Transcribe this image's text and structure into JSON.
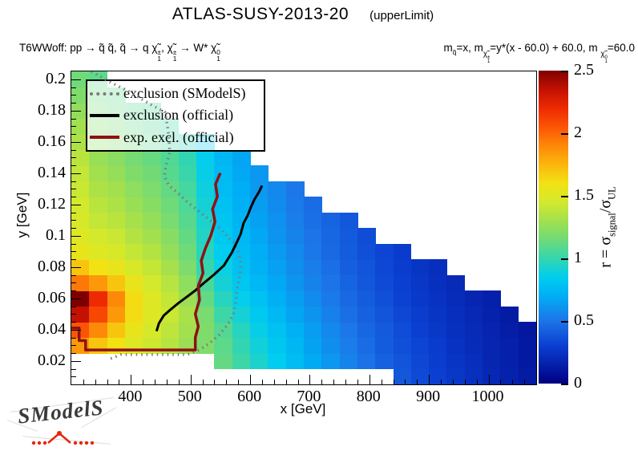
{
  "title": {
    "main": "ATLAS-SUSY-2013-20",
    "suffix": "(upperLimit)"
  },
  "process_left": [
    {
      "t": "T6WWoff: pp  →  q̃ q̃, q̃  → q "
    },
    {
      "t": "χ̃",
      "sup": "±",
      "sub": "1"
    },
    {
      "t": ", "
    },
    {
      "t": "χ̃",
      "sup": "±",
      "sub": "1"
    },
    {
      "t": " → W* "
    },
    {
      "t": "χ̃",
      "sup": "0",
      "sub": "1"
    }
  ],
  "process_right": [
    {
      "t": "m",
      "sub": "q̃"
    },
    {
      "t": "=x, m"
    },
    {
      "subseg": [
        {
          "t": "χ̃",
          "sup": "±",
          "sub": "1"
        }
      ]
    },
    {
      "t": "=y*(x - 60.0) + 60.0, m "
    },
    {
      "subseg": [
        {
          "t": "χ̃",
          "sup": "0",
          "sub": "1"
        }
      ]
    },
    {
      "t": "=60.0"
    }
  ],
  "axes": {
    "x_label": "x [GeV]",
    "y_label": "y [GeV]"
  },
  "legend": {
    "items": [
      {
        "label": "exclusion (SModelS)",
        "style": "dotted",
        "color": "#7a7a7a"
      },
      {
        "label": "exclusion (official)",
        "style": "solid",
        "color": "#000000"
      },
      {
        "label": "exp. excl. (official)",
        "style": "solid",
        "color": "#8e1212"
      }
    ]
  },
  "colorbar_title_segments": [
    {
      "t": "r = σ",
      "sub": "signal"
    },
    {
      "t": "/σ",
      "sub": "UL"
    }
  ],
  "logo": {
    "text": "SModelS",
    "accent": "#e8250c"
  },
  "chart_data": {
    "type": "heatmap",
    "title": "ATLAS-SUSY-2013-20 (upperLimit)",
    "xlabel": "x [GeV]",
    "ylabel": "y [GeV]",
    "zlabel": "r = sigma_signal/sigma_UL",
    "xlim": [
      300,
      1080
    ],
    "ylim": [
      0.005,
      0.205
    ],
    "zlim": [
      0,
      2.5
    ],
    "x_ticks": [
      400,
      500,
      600,
      700,
      800,
      900,
      1000
    ],
    "x_minor_step": 20,
    "y_ticks": [
      0.02,
      0.04,
      0.06,
      0.08,
      0.1,
      0.12,
      0.14,
      0.16,
      0.18,
      0.2
    ],
    "y_tick_labels": [
      "0.02",
      "0.04",
      "0.06",
      "0.08",
      "0.1",
      "0.12",
      "0.14",
      "0.16",
      "0.18",
      "0.2"
    ],
    "y_minor_step": 0.005,
    "colorbar_ticks": [
      0,
      0.5,
      1,
      1.5,
      2,
      2.5
    ],
    "colorbar_tick_labels": [
      "0",
      "0.5",
      "1",
      "1.5",
      "2",
      "2.5"
    ],
    "x_bin": 30,
    "y_bin": 0.01,
    "colormap": [
      [
        0.0,
        "#000082"
      ],
      [
        0.3,
        "#0a3fd1"
      ],
      [
        0.5,
        "#1d74e8"
      ],
      [
        0.7,
        "#00aef5"
      ],
      [
        0.85,
        "#00cdef"
      ],
      [
        1.0,
        "#35d6ae"
      ],
      [
        1.15,
        "#6fda78"
      ],
      [
        1.3,
        "#a3e04e"
      ],
      [
        1.45,
        "#d3e92c"
      ],
      [
        1.6,
        "#f2e214"
      ],
      [
        1.75,
        "#fbb60b"
      ],
      [
        1.9,
        "#fd8908"
      ],
      [
        2.05,
        "#fb5504"
      ],
      [
        2.2,
        "#ee2a02"
      ],
      [
        2.35,
        "#c31102"
      ],
      [
        2.5,
        "#7e0000"
      ]
    ],
    "columns": [
      {
        "x": 315,
        "y0": 0.03,
        "r": [
          1.85,
          2.05,
          2.35,
          2.5,
          1.95,
          1.7,
          1.55,
          1.5,
          1.47,
          1.45,
          1.42,
          1.4,
          1.37,
          1.33,
          1.3,
          1.25,
          1.2,
          1.15
        ]
      },
      {
        "x": 345,
        "y0": 0.03,
        "r": [
          1.7,
          1.9,
          2.1,
          2.2,
          1.85,
          1.6,
          1.5,
          1.45,
          1.4,
          1.37,
          1.33,
          1.3,
          1.27,
          1.23,
          1.2,
          1.17,
          1.13,
          1.1
        ]
      },
      {
        "x": 375,
        "y0": 0.03,
        "r": [
          1.6,
          1.7,
          1.85,
          1.9,
          1.7,
          1.55,
          1.47,
          1.42,
          1.37,
          1.33,
          1.3,
          1.26,
          1.23,
          1.2,
          1.17,
          1.13,
          1.1
        ]
      },
      {
        "x": 405,
        "y0": 0.03,
        "r": [
          1.5,
          1.55,
          1.62,
          1.62,
          1.55,
          1.47,
          1.4,
          1.35,
          1.31,
          1.27,
          1.24,
          1.2,
          1.17,
          1.14,
          1.11,
          1.08
        ]
      },
      {
        "x": 435,
        "y0": 0.03,
        "r": [
          1.43,
          1.46,
          1.5,
          1.5,
          1.45,
          1.4,
          1.35,
          1.3,
          1.26,
          1.22,
          1.19,
          1.16,
          1.13,
          1.1,
          1.07,
          1.05
        ]
      },
      {
        "x": 465,
        "y0": 0.03,
        "r": [
          1.36,
          1.38,
          1.42,
          1.4,
          1.36,
          1.31,
          1.26,
          1.22,
          1.18,
          1.15,
          1.12,
          1.09,
          1.07,
          1.04,
          1.02
        ]
      },
      {
        "x": 495,
        "y0": 0.03,
        "r": [
          1.28,
          1.3,
          1.32,
          1.28,
          1.24,
          1.19,
          1.15,
          1.12,
          1.09,
          1.06,
          1.04,
          1.01,
          0.99,
          0.97
        ]
      },
      {
        "x": 525,
        "y0": 0.03,
        "r": [
          1.2,
          1.2,
          1.18,
          1.12,
          1.06,
          1.0,
          0.97,
          0.95,
          0.93,
          0.91,
          0.89,
          0.87,
          0.86,
          0.84
        ]
      },
      {
        "x": 555,
        "y0": 0.02,
        "r": [
          1.12,
          1.1,
          1.08,
          1.02,
          0.96,
          0.91,
          0.88,
          0.85,
          0.83,
          0.81,
          0.79,
          0.77,
          0.76,
          0.74
        ]
      },
      {
        "x": 585,
        "y0": 0.02,
        "r": [
          1.02,
          0.99,
          0.96,
          0.91,
          0.86,
          0.82,
          0.79,
          0.77,
          0.75,
          0.73,
          0.71,
          0.7,
          0.68,
          0.67
        ]
      },
      {
        "x": 615,
        "y0": 0.02,
        "r": [
          0.93,
          0.9,
          0.87,
          0.83,
          0.79,
          0.75,
          0.72,
          0.7,
          0.68,
          0.66,
          0.64,
          0.63,
          0.62
        ]
      },
      {
        "x": 645,
        "y0": 0.02,
        "r": [
          0.85,
          0.82,
          0.79,
          0.75,
          0.71,
          0.68,
          0.65,
          0.63,
          0.61,
          0.6,
          0.58,
          0.57
        ]
      },
      {
        "x": 675,
        "y0": 0.02,
        "r": [
          0.77,
          0.74,
          0.71,
          0.67,
          0.64,
          0.61,
          0.59,
          0.57,
          0.55,
          0.53,
          0.52,
          0.51
        ]
      },
      {
        "x": 705,
        "y0": 0.02,
        "r": [
          0.69,
          0.66,
          0.64,
          0.61,
          0.58,
          0.55,
          0.53,
          0.51,
          0.5,
          0.48,
          0.47
        ]
      },
      {
        "x": 735,
        "y0": 0.02,
        "r": [
          0.62,
          0.59,
          0.57,
          0.54,
          0.52,
          0.5,
          0.48,
          0.46,
          0.45,
          0.44
        ]
      },
      {
        "x": 765,
        "y0": 0.02,
        "r": [
          0.55,
          0.53,
          0.51,
          0.48,
          0.46,
          0.44,
          0.42,
          0.41,
          0.4,
          0.39
        ]
      },
      {
        "x": 795,
        "y0": 0.02,
        "r": [
          0.49,
          0.47,
          0.45,
          0.43,
          0.41,
          0.39,
          0.38,
          0.36,
          0.35
        ]
      },
      {
        "x": 825,
        "y0": 0.02,
        "r": [
          0.43,
          0.41,
          0.4,
          0.38,
          0.36,
          0.34,
          0.33,
          0.32
        ]
      },
      {
        "x": 855,
        "y0": 0.01,
        "r": [
          0.39,
          0.38,
          0.36,
          0.35,
          0.33,
          0.31,
          0.3,
          0.29,
          0.28
        ]
      },
      {
        "x": 885,
        "y0": 0.01,
        "r": [
          0.34,
          0.33,
          0.32,
          0.3,
          0.29,
          0.27,
          0.26,
          0.25
        ]
      },
      {
        "x": 915,
        "y0": 0.01,
        "r": [
          0.3,
          0.29,
          0.28,
          0.26,
          0.25,
          0.24,
          0.23,
          0.22
        ]
      },
      {
        "x": 945,
        "y0": 0.01,
        "r": [
          0.26,
          0.25,
          0.24,
          0.23,
          0.22,
          0.21,
          0.2
        ]
      },
      {
        "x": 975,
        "y0": 0.01,
        "r": [
          0.23,
          0.22,
          0.21,
          0.2,
          0.19,
          0.18
        ]
      },
      {
        "x": 1005,
        "y0": 0.01,
        "r": [
          0.19,
          0.18,
          0.18,
          0.17,
          0.16,
          0.15
        ]
      },
      {
        "x": 1035,
        "y0": 0.01,
        "r": [
          0.16,
          0.15,
          0.15,
          0.14,
          0.13
        ]
      },
      {
        "x": 1065,
        "y0": 0.01,
        "r": [
          0.13,
          0.12,
          0.12,
          0.11
        ]
      }
    ],
    "curves": [
      {
        "name": "exclusion_smodels",
        "style": "dotted",
        "color": "#7a7a7a",
        "width": 3.5,
        "points": [
          [
            334,
            0.205
          ],
          [
            356,
            0.2
          ],
          [
            397,
            0.192
          ],
          [
            437,
            0.183
          ],
          [
            457,
            0.179
          ],
          [
            461,
            0.171
          ],
          [
            464,
            0.162
          ],
          [
            465,
            0.153
          ],
          [
            459,
            0.145
          ],
          [
            456,
            0.138
          ],
          [
            464,
            0.132
          ],
          [
            480,
            0.127
          ],
          [
            496,
            0.121
          ],
          [
            513,
            0.116
          ],
          [
            529,
            0.111
          ],
          [
            545,
            0.106
          ],
          [
            561,
            0.1
          ],
          [
            574,
            0.095
          ],
          [
            581,
            0.089
          ],
          [
            585,
            0.081
          ],
          [
            582,
            0.073
          ],
          [
            578,
            0.066
          ],
          [
            576,
            0.058
          ],
          [
            572,
            0.05
          ],
          [
            562,
            0.043
          ],
          [
            549,
            0.037
          ],
          [
            531,
            0.031
          ],
          [
            514,
            0.027
          ],
          [
            495,
            0.024
          ],
          [
            383,
            0.024
          ],
          [
            370,
            0.022
          ],
          [
            361,
            0.021
          ]
        ]
      },
      {
        "name": "exclusion_official",
        "style": "solid",
        "color": "#000000",
        "width": 3,
        "points": [
          [
            620,
            0.132
          ],
          [
            615,
            0.128
          ],
          [
            607,
            0.123
          ],
          [
            601,
            0.118
          ],
          [
            596,
            0.113
          ],
          [
            589,
            0.108
          ],
          [
            584,
            0.101
          ],
          [
            578,
            0.096
          ],
          [
            569,
            0.089
          ],
          [
            556,
            0.081
          ],
          [
            539,
            0.075
          ],
          [
            523,
            0.07
          ],
          [
            508,
            0.065
          ],
          [
            494,
            0.061
          ],
          [
            480,
            0.057
          ],
          [
            467,
            0.053
          ],
          [
            455,
            0.049
          ],
          [
            447,
            0.044
          ],
          [
            443,
            0.039
          ]
        ]
      },
      {
        "name": "expected_exclusion_official",
        "style": "solid",
        "color": "#8e1212",
        "width": 3.5,
        "points": [
          [
            300,
            0.041
          ],
          [
            313,
            0.041
          ],
          [
            313,
            0.033
          ],
          [
            324,
            0.033
          ],
          [
            324,
            0.027
          ],
          [
            508,
            0.027
          ],
          [
            508,
            0.035
          ],
          [
            513,
            0.042
          ],
          [
            508,
            0.05
          ],
          [
            515,
            0.059
          ],
          [
            513,
            0.068
          ],
          [
            521,
            0.076
          ],
          [
            518,
            0.084
          ],
          [
            525,
            0.092
          ],
          [
            534,
            0.1
          ],
          [
            541,
            0.109
          ],
          [
            537,
            0.117
          ],
          [
            545,
            0.125
          ],
          [
            542,
            0.133
          ],
          [
            550,
            0.14
          ]
        ]
      }
    ]
  }
}
